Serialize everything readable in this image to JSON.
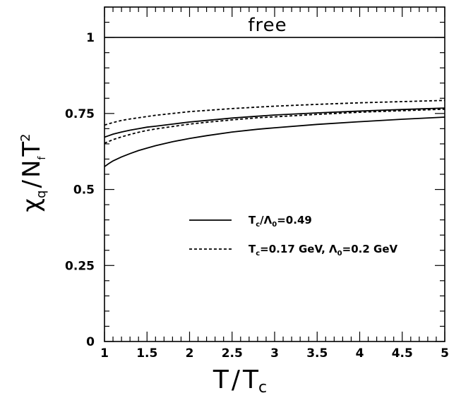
{
  "chart_data": {
    "type": "line",
    "xlabel": {
      "main": "T",
      "sep": "/",
      "sub_main": "T",
      "sub": "c"
    },
    "ylabel": {
      "chi": "χ",
      "chi_sub": "q",
      "sep": "/",
      "n": "N",
      "n_sub": "f",
      "t": "T",
      "t_sup": "2"
    },
    "xlim": [
      1,
      5
    ],
    "ylim": [
      0,
      1.1
    ],
    "xticks": [
      {
        "v": 1,
        "label": "1"
      },
      {
        "v": 1.5,
        "label": "1.5"
      },
      {
        "v": 2,
        "label": "2"
      },
      {
        "v": 2.5,
        "label": "2.5"
      },
      {
        "v": 3,
        "label": "3"
      },
      {
        "v": 3.5,
        "label": "3.5"
      },
      {
        "v": 4,
        "label": "4"
      },
      {
        "v": 4.5,
        "label": "4.5"
      },
      {
        "v": 5,
        "label": "5"
      }
    ],
    "yticks": [
      {
        "v": 0,
        "label": "0"
      },
      {
        "v": 0.25,
        "label": "0.25"
      },
      {
        "v": 0.5,
        "label": "0.5"
      },
      {
        "v": 0.75,
        "label": "0.75"
      },
      {
        "v": 1,
        "label": "1"
      }
    ],
    "reference_line": {
      "y": 1.0,
      "label": "free"
    },
    "legend": [
      {
        "style": "solid",
        "tc": "T",
        "tc_sub": "c",
        "mid": "/Λ",
        "mid_sub": "0",
        "rest": "=0.49"
      },
      {
        "style": "dashed",
        "tc": "T",
        "tc_sub": "c",
        "mid": "=0.17 GeV, Λ",
        "mid_sub": "0",
        "rest": "=0.2 GeV"
      }
    ],
    "series": [
      {
        "style": "solid",
        "x": [
          1.0,
          1.05,
          1.1,
          1.2,
          1.3,
          1.4,
          1.5,
          1.6,
          1.8,
          2.0,
          2.2,
          2.5,
          2.8,
          3.0,
          3.5,
          4.0,
          4.5,
          5.0
        ],
        "y": [
          0.672,
          0.677,
          0.682,
          0.689,
          0.695,
          0.7,
          0.705,
          0.708,
          0.715,
          0.722,
          0.727,
          0.735,
          0.741,
          0.745,
          0.752,
          0.758,
          0.763,
          0.768
        ]
      },
      {
        "style": "solid",
        "x": [
          1.0,
          1.05,
          1.1,
          1.2,
          1.3,
          1.4,
          1.5,
          1.6,
          1.8,
          2.0,
          2.2,
          2.5,
          2.8,
          3.0,
          3.5,
          4.0,
          4.5,
          5.0
        ],
        "y": [
          0.575,
          0.585,
          0.594,
          0.607,
          0.618,
          0.628,
          0.636,
          0.644,
          0.657,
          0.668,
          0.677,
          0.689,
          0.698,
          0.703,
          0.714,
          0.723,
          0.731,
          0.738
        ]
      },
      {
        "style": "dashed",
        "x": [
          1.0,
          1.05,
          1.1,
          1.2,
          1.3,
          1.4,
          1.5,
          1.6,
          1.8,
          2.0,
          2.2,
          2.5,
          2.8,
          3.0,
          3.5,
          4.0,
          4.5,
          5.0
        ],
        "y": [
          0.712,
          0.716,
          0.72,
          0.727,
          0.732,
          0.736,
          0.74,
          0.744,
          0.75,
          0.756,
          0.76,
          0.766,
          0.771,
          0.774,
          0.78,
          0.785,
          0.789,
          0.793
        ]
      },
      {
        "style": "dashed",
        "x": [
          1.0,
          1.05,
          1.1,
          1.2,
          1.3,
          1.4,
          1.5,
          1.6,
          1.8,
          2.0,
          2.2,
          2.5,
          2.8,
          3.0,
          3.5,
          4.0,
          4.5,
          5.0
        ],
        "y": [
          0.652,
          0.658,
          0.664,
          0.673,
          0.681,
          0.688,
          0.694,
          0.699,
          0.707,
          0.715,
          0.721,
          0.729,
          0.736,
          0.739,
          0.747,
          0.754,
          0.759,
          0.764
        ]
      }
    ]
  }
}
